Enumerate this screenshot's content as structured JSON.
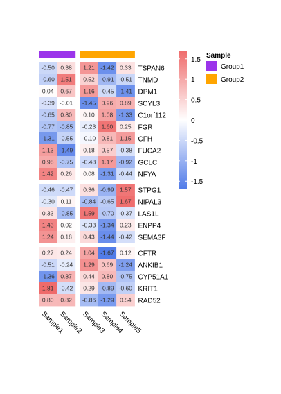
{
  "chart_data": {
    "type": "heatmap",
    "title": "",
    "columns": [
      "Sample1",
      "Sample2",
      "Sample3",
      "Sample4",
      "Sample5"
    ],
    "column_groups": [
      "Group1",
      "Group1",
      "Group2",
      "Group2",
      "Group2"
    ],
    "rows": [
      "TSPAN6",
      "TNMD",
      "DPM1",
      "SCYL3",
      "C1orf112",
      "FGR",
      "CFH",
      "FUCA2",
      "GCLC",
      "NFYA",
      "STPG1",
      "NIPAL3",
      "LAS1L",
      "ENPP4",
      "SEMA3F",
      "CFTR",
      "ANKIB1",
      "CYP51A1",
      "KRIT1",
      "RAD52"
    ],
    "row_gaps_after": [
      9,
      14
    ],
    "column_gaps_after": [
      1
    ],
    "values": [
      [
        -0.5,
        0.38,
        1.21,
        -1.42,
        0.33
      ],
      [
        -0.6,
        1.51,
        0.52,
        -0.91,
        -0.51
      ],
      [
        0.04,
        0.67,
        1.16,
        -0.45,
        -1.41
      ],
      [
        -0.39,
        -0.01,
        -1.45,
        0.96,
        0.89
      ],
      [
        -0.65,
        0.8,
        0.1,
        1.08,
        -1.33
      ],
      [
        -0.77,
        -0.85,
        -0.23,
        1.6,
        0.25
      ],
      [
        -1.31,
        -0.55,
        -0.1,
        0.81,
        1.15
      ],
      [
        1.13,
        -1.49,
        0.18,
        0.57,
        -0.38
      ],
      [
        0.98,
        -0.75,
        -0.48,
        1.17,
        -0.92
      ],
      [
        1.42,
        0.26,
        0.08,
        -1.31,
        -0.44
      ],
      [
        -0.46,
        -0.47,
        0.36,
        -0.99,
        1.57
      ],
      [
        -0.3,
        0.11,
        -0.84,
        -0.65,
        1.67
      ],
      [
        0.33,
        -0.85,
        1.59,
        -0.7,
        -0.37
      ],
      [
        1.43,
        0.02,
        -0.33,
        -1.34,
        0.23
      ],
      [
        1.24,
        0.18,
        0.43,
        -1.44,
        -0.42
      ],
      [
        0.27,
        0.24,
        1.04,
        -1.67,
        0.12
      ],
      [
        -0.51,
        -0.24,
        1.29,
        0.69,
        -1.24
      ],
      [
        -1.36,
        0.87,
        0.44,
        0.8,
        -0.75
      ],
      [
        1.81,
        -0.42,
        0.29,
        -0.89,
        -0.6
      ],
      [
        0.8,
        0.82,
        -0.86,
        -1.29,
        0.54
      ]
    ],
    "colorbar": {
      "ticks": [
        1.5,
        1,
        0.5,
        0,
        -0.5,
        -1,
        -1.5
      ],
      "tick_labels": [
        "1.5",
        "1",
        "0.5",
        "0",
        "-0.5",
        "-1",
        "-1.5"
      ],
      "range": [
        -1.7,
        1.7
      ],
      "low_color": "#4f7ae8",
      "mid_color": "#ffffff",
      "high_color": "#ef6b6b"
    },
    "legend": {
      "title": "Sample",
      "placement": "right",
      "entries": [
        {
          "label": "Group1",
          "color": "#9b34ea"
        },
        {
          "label": "Group2",
          "color": "#ffa500"
        }
      ]
    }
  }
}
